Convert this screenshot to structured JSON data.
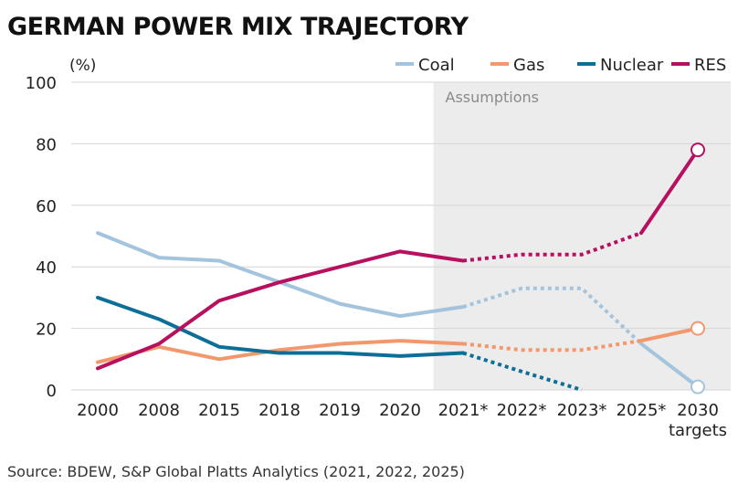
{
  "chart_data": {
    "type": "line",
    "title": "GERMAN POWER MIX TRAJECTORY",
    "unit_label": "(%)",
    "categories": [
      "2000",
      "2008",
      "2015",
      "2018",
      "2019",
      "2020",
      "2021*",
      "2022*",
      "2023*",
      "2025*",
      "2030"
    ],
    "category_sublabels": {
      "2030": "targets"
    },
    "ylim": [
      0,
      100
    ],
    "yticks": [
      0,
      20,
      40,
      60,
      80,
      100
    ],
    "grid": true,
    "legend_position": "top-right",
    "shaded_region": {
      "from_category": "2021*",
      "to_category": "2030",
      "label": "Assumptions",
      "color": "#ececec"
    },
    "series": [
      {
        "name": "Coal",
        "color": "#a3c4dc",
        "values": [
          51,
          43,
          42,
          35,
          28,
          24,
          27,
          33,
          33,
          15,
          1
        ],
        "solid_through": "2021*",
        "target_marker": true
      },
      {
        "name": "Gas",
        "color": "#f2986c",
        "values": [
          9,
          14,
          10,
          13,
          15,
          16,
          15,
          13,
          13,
          16,
          20
        ],
        "solid_through": "2021*",
        "target_marker": true
      },
      {
        "name": "Nuclear",
        "color": "#0d6e97",
        "values": [
          30,
          23,
          14,
          12,
          12,
          11,
          12,
          6,
          0,
          null,
          null
        ],
        "solid_through": "2021*",
        "target_marker": false
      },
      {
        "name": "RES",
        "color": "#b6105f",
        "values": [
          7,
          15,
          29,
          35,
          40,
          45,
          42,
          44,
          44,
          51,
          78
        ],
        "solid_through": "2021*",
        "target_marker": true
      }
    ],
    "source": "Source: BDEW, S&P Global Platts Analytics (2021, 2022, 2025)"
  }
}
